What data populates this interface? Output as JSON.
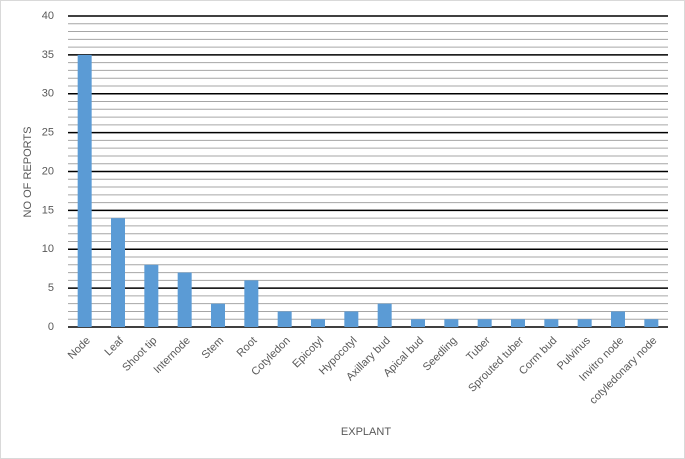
{
  "chart_data": {
    "type": "bar",
    "x_label": "EXPLANT",
    "y_label": "NO OF REPORTS",
    "categories": [
      "Node",
      "Leaf",
      "Shoot tip",
      "Internode",
      "Stem",
      "Root",
      "Cotyledon",
      "Epicotyl",
      "Hypocotyl",
      "Axillary bud",
      "Apical bud",
      "Seedling",
      "Tuber",
      "Sprouted tuber",
      "Corm bud",
      "Pulvinus",
      "Invitro node",
      "cotyledonary node"
    ],
    "values": [
      35,
      14,
      8,
      7,
      3,
      6,
      2,
      1,
      2,
      3,
      1,
      1,
      1,
      1,
      1,
      1,
      2,
      1
    ],
    "color": "#5b9bd5",
    "ylim": [
      0,
      40
    ],
    "yticks": [
      0,
      5,
      10,
      15,
      20,
      25,
      30,
      35,
      40
    ],
    "grid": true,
    "minor_gridlines": [
      1,
      2,
      3,
      4,
      6,
      7,
      8,
      9,
      11,
      12,
      13,
      14,
      16,
      17,
      18,
      19,
      21,
      22,
      23,
      24,
      26,
      27,
      28,
      29,
      31,
      32,
      33,
      34,
      36,
      37,
      38,
      39
    ]
  }
}
